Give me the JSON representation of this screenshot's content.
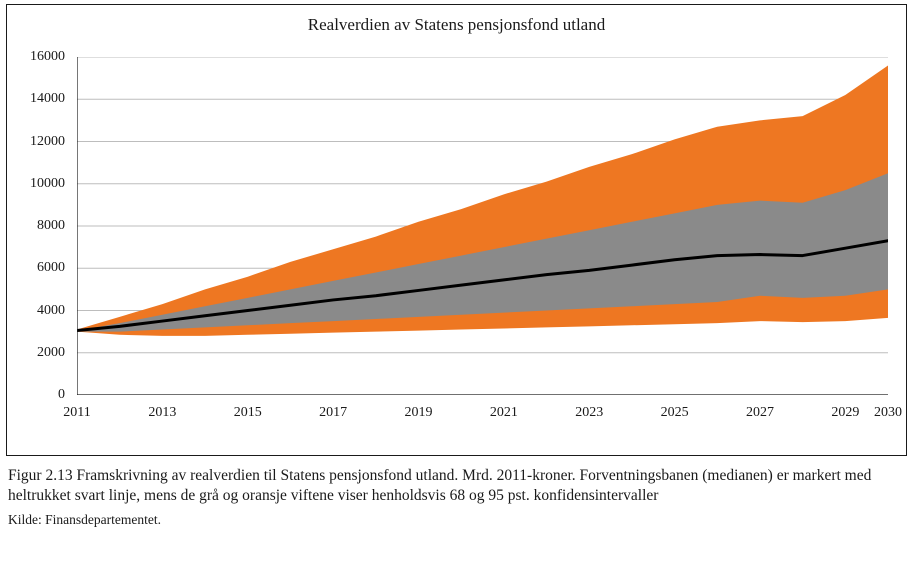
{
  "chart": {
    "type": "fan-chart",
    "title": "Realverdien av Statens pensjonsfond utland",
    "title_fontsize": 17,
    "label_fontsize": 14,
    "font_family": "Georgia",
    "background_color": "#ffffff",
    "grid_color": "#bdbdbd",
    "axis_color": "#1a1a1a",
    "x": {
      "min": 2011,
      "max": 2030,
      "tick_step": 2,
      "ticks": [
        2011,
        2013,
        2015,
        2017,
        2019,
        2021,
        2023,
        2025,
        2027,
        2029,
        2030
      ]
    },
    "y": {
      "min": 0,
      "max": 16000,
      "tick_step": 2000,
      "ticks": [
        0,
        2000,
        4000,
        6000,
        8000,
        10000,
        12000,
        14000,
        16000
      ]
    },
    "series_years": [
      2011,
      2012,
      2013,
      2014,
      2015,
      2016,
      2017,
      2018,
      2019,
      2020,
      2021,
      2022,
      2023,
      2024,
      2025,
      2026,
      2027,
      2028,
      2029,
      2030
    ],
    "bands": [
      {
        "name": "ci95",
        "label": "95% konfidensintervall",
        "color": "#ee7722",
        "upper": [
          3100,
          3700,
          4300,
          5000,
          5600,
          6300,
          6900,
          7500,
          8200,
          8800,
          9500,
          10100,
          10800,
          11400,
          12100,
          12700,
          13000,
          13200,
          14200,
          15600
        ],
        "lower": [
          3000,
          2850,
          2800,
          2800,
          2850,
          2900,
          2950,
          3000,
          3050,
          3100,
          3150,
          3200,
          3250,
          3300,
          3350,
          3400,
          3500,
          3450,
          3500,
          3650
        ]
      },
      {
        "name": "ci68",
        "label": "68% konfidensintervall",
        "color": "#8a8a8a",
        "upper": [
          3050,
          3400,
          3800,
          4200,
          4600,
          5000,
          5400,
          5800,
          6200,
          6600,
          7000,
          7400,
          7800,
          8200,
          8600,
          9000,
          9200,
          9100,
          9700,
          10500
        ],
        "lower": [
          3000,
          3000,
          3100,
          3200,
          3300,
          3400,
          3500,
          3600,
          3700,
          3800,
          3900,
          4000,
          4100,
          4200,
          4300,
          4400,
          4700,
          4600,
          4700,
          5000
        ]
      }
    ],
    "median": {
      "name": "median",
      "label": "Forventningsbane (median)",
      "color": "#000000",
      "line_width": 3,
      "values": [
        3050,
        3250,
        3500,
        3750,
        4000,
        4250,
        4500,
        4700,
        4950,
        5200,
        5450,
        5700,
        5900,
        6150,
        6400,
        6600,
        6650,
        6600,
        6950,
        7300
      ]
    }
  },
  "caption": {
    "text": "Figur 2.13  Framskrivning av realverdien til Statens pensjonsfond utland. Mrd. 2011-kroner. Forventningsbanen (medianen) er markert med heltrukket svart linje, mens de grå og oransje viftene viser henholdsvis 68 og 95 pst. konfidensintervaller",
    "fontsize": 15.5
  },
  "source": {
    "label": "Kilde: Finansdepartementet.",
    "fontsize": 13.5
  }
}
